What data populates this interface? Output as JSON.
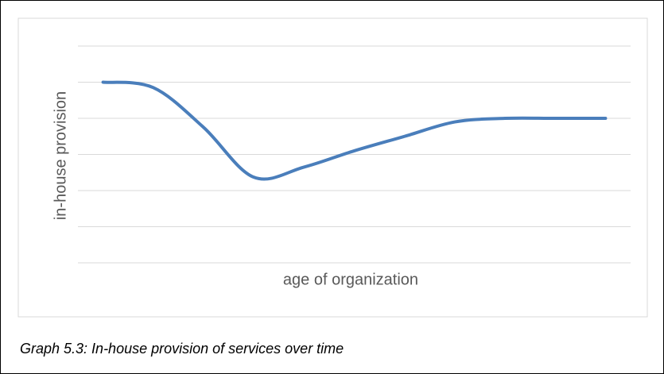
{
  "chart_data": {
    "type": "line",
    "caption": "Graph 5.3: In-house provision of services over time",
    "xlabel": "age of organization",
    "ylabel": "in-house provision",
    "categories": [
      null,
      null,
      null,
      null,
      null,
      null,
      null,
      null,
      null,
      null,
      null
    ],
    "series": [
      {
        "name": null,
        "color": "#4a7ebb",
        "values": [
          5.0,
          4.85,
          3.75,
          2.37,
          2.65,
          3.1,
          3.5,
          3.9,
          4.0,
          4.0,
          4.0
        ]
      }
    ],
    "ylim": [
      0,
      6
    ],
    "yticks": [
      0,
      1,
      2,
      3,
      4,
      5,
      6
    ],
    "grid": true,
    "smooth": true
  }
}
